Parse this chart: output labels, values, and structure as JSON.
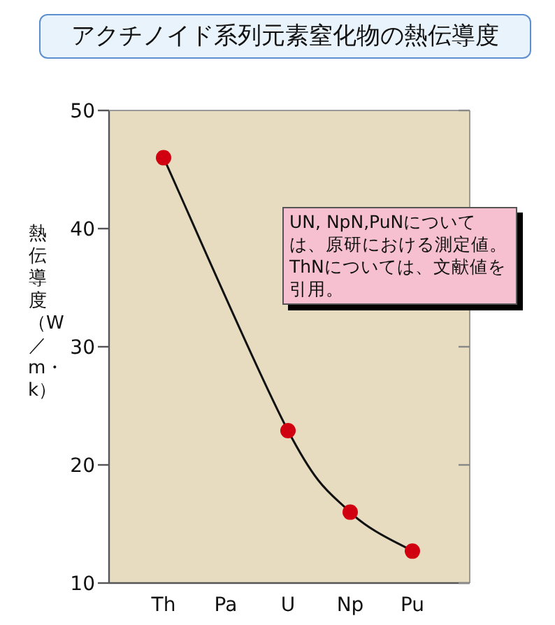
{
  "chart_data": {
    "type": "line",
    "title": "アクチノイド系列元素窒化物の熱伝導度",
    "ylabel": "熱伝導度（W／m・k）",
    "categories": [
      "Th",
      "Pa",
      "U",
      "Np",
      "Pu"
    ],
    "series": [
      {
        "color": "#d00010",
        "values": [
          46,
          null,
          22.9,
          16.0,
          12.7
        ]
      }
    ],
    "ylim": [
      10,
      50
    ],
    "yticks": [
      10,
      20,
      30,
      40,
      50
    ],
    "marker": "circle",
    "line_style": "solid",
    "grid": false,
    "annotations": [
      "UN, NpN,PuNについては、原研における測定値。ThNについては、文献値を引用。"
    ]
  }
}
